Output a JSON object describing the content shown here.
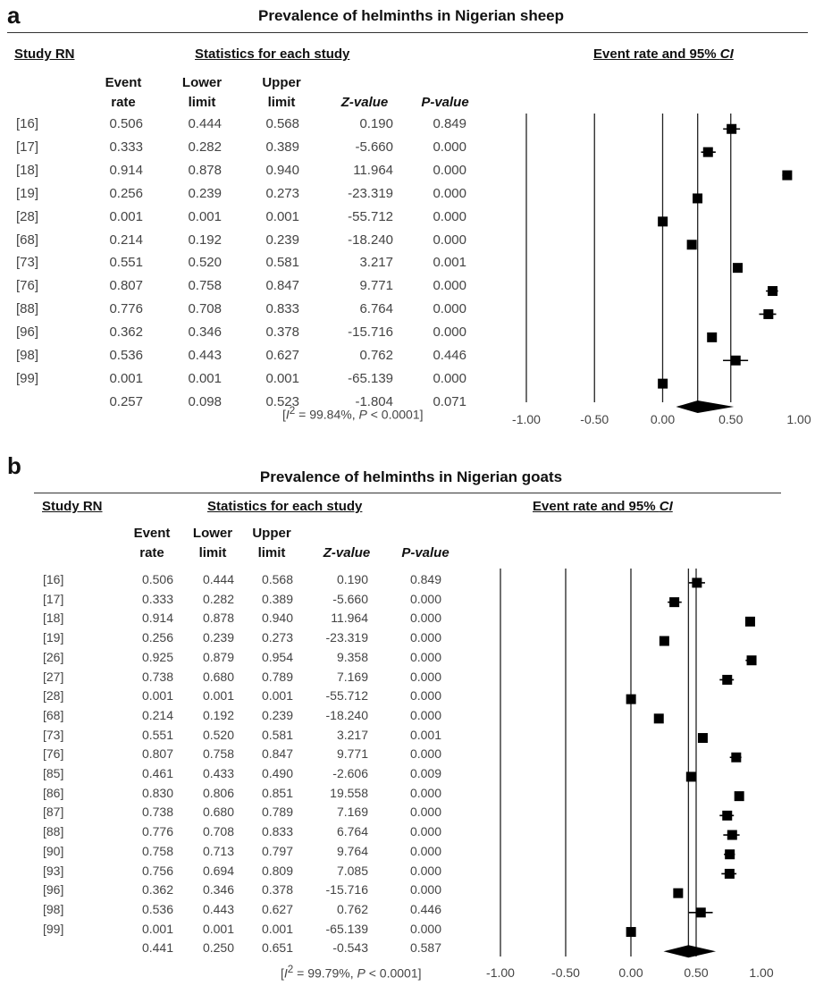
{
  "panels": [
    {
      "label": "a",
      "title": "Prevalence of helminths in Nigerian sheep",
      "header_study": "Study RN",
      "header_stats": "Statistics for each study",
      "header_plot_text": "Event rate and 95% ",
      "header_plot_ci": "CI",
      "col_event": [
        "Event",
        "rate"
      ],
      "col_lower": [
        "Lower",
        "limit"
      ],
      "col_upper": [
        "Upper",
        "limit"
      ],
      "col_z": "Z-value",
      "col_p": "P-value",
      "rows": [
        {
          "study": "[16]",
          "rate": "0.506",
          "lower": "0.444",
          "upper": "0.568",
          "z": "0.190",
          "p": "0.849"
        },
        {
          "study": "[17]",
          "rate": "0.333",
          "lower": "0.282",
          "upper": "0.389",
          "z": "-5.660",
          "p": "0.000"
        },
        {
          "study": "[18]",
          "rate": "0.914",
          "lower": "0.878",
          "upper": "0.940",
          "z": "11.964",
          "p": "0.000"
        },
        {
          "study": "[19]",
          "rate": "0.256",
          "lower": "0.239",
          "upper": "0.273",
          "z": "-23.319",
          "p": "0.000"
        },
        {
          "study": "[28]",
          "rate": "0.001",
          "lower": "0.001",
          "upper": "0.001",
          "z": "-55.712",
          "p": "0.000"
        },
        {
          "study": "[68]",
          "rate": "0.214",
          "lower": "0.192",
          "upper": "0.239",
          "z": "-18.240",
          "p": "0.000"
        },
        {
          "study": "[73]",
          "rate": "0.551",
          "lower": "0.520",
          "upper": "0.581",
          "z": "3.217",
          "p": "0.001"
        },
        {
          "study": "[76]",
          "rate": "0.807",
          "lower": "0.758",
          "upper": "0.847",
          "z": "9.771",
          "p": "0.000"
        },
        {
          "study": "[88]",
          "rate": "0.776",
          "lower": "0.708",
          "upper": "0.833",
          "z": "6.764",
          "p": "0.000"
        },
        {
          "study": "[96]",
          "rate": "0.362",
          "lower": "0.346",
          "upper": "0.378",
          "z": "-15.716",
          "p": "0.000"
        },
        {
          "study": "[98]",
          "rate": "0.536",
          "lower": "0.443",
          "upper": "0.627",
          "z": "0.762",
          "p": "0.446"
        },
        {
          "study": "[99]",
          "rate": "0.001",
          "lower": "0.001",
          "upper": "0.001",
          "z": "-65.139",
          "p": "0.000"
        }
      ],
      "summary": {
        "rate": "0.257",
        "lower": "0.098",
        "upper": "0.523",
        "z": "-1.804",
        "p": "0.071"
      },
      "heterogeneity": {
        "pre": "[",
        "i": "I",
        "sup": "2",
        "mid": " = 99.84%, ",
        "p": "P",
        "post": " < 0.0001]"
      }
    },
    {
      "label": "b",
      "title": "Prevalence of helminths in Nigerian goats",
      "header_study": "Study RN",
      "header_stats": "Statistics for each study",
      "header_plot_text": "Event rate and 95% ",
      "header_plot_ci": "CI",
      "col_event": [
        "Event",
        "rate"
      ],
      "col_lower": [
        "Lower",
        "limit"
      ],
      "col_upper": [
        "Upper",
        "limit"
      ],
      "col_z": "Z-value",
      "col_p": "P-value",
      "rows": [
        {
          "study": "[16]",
          "rate": "0.506",
          "lower": "0.444",
          "upper": "0.568",
          "z": "0.190",
          "p": "0.849"
        },
        {
          "study": "[17]",
          "rate": "0.333",
          "lower": "0.282",
          "upper": "0.389",
          "z": "-5.660",
          "p": "0.000"
        },
        {
          "study": "[18]",
          "rate": "0.914",
          "lower": "0.878",
          "upper": "0.940",
          "z": "11.964",
          "p": "0.000"
        },
        {
          "study": "[19]",
          "rate": "0.256",
          "lower": "0.239",
          "upper": "0.273",
          "z": "-23.319",
          "p": "0.000"
        },
        {
          "study": "[26]",
          "rate": "0.925",
          "lower": "0.879",
          "upper": "0.954",
          "z": "9.358",
          "p": "0.000"
        },
        {
          "study": "[27]",
          "rate": "0.738",
          "lower": "0.680",
          "upper": "0.789",
          "z": "7.169",
          "p": "0.000"
        },
        {
          "study": "[28]",
          "rate": "0.001",
          "lower": "0.001",
          "upper": "0.001",
          "z": "-55.712",
          "p": "0.000"
        },
        {
          "study": "[68]",
          "rate": "0.214",
          "lower": "0.192",
          "upper": "0.239",
          "z": "-18.240",
          "p": "0.000"
        },
        {
          "study": "[73]",
          "rate": "0.551",
          "lower": "0.520",
          "upper": "0.581",
          "z": "3.217",
          "p": "0.001"
        },
        {
          "study": "[76]",
          "rate": "0.807",
          "lower": "0.758",
          "upper": "0.847",
          "z": "9.771",
          "p": "0.000"
        },
        {
          "study": "[85]",
          "rate": "0.461",
          "lower": "0.433",
          "upper": "0.490",
          "z": "-2.606",
          "p": "0.009"
        },
        {
          "study": "[86]",
          "rate": "0.830",
          "lower": "0.806",
          "upper": "0.851",
          "z": "19.558",
          "p": "0.000"
        },
        {
          "study": "[87]",
          "rate": "0.738",
          "lower": "0.680",
          "upper": "0.789",
          "z": "7.169",
          "p": "0.000"
        },
        {
          "study": "[88]",
          "rate": "0.776",
          "lower": "0.708",
          "upper": "0.833",
          "z": "6.764",
          "p": "0.000"
        },
        {
          "study": "[90]",
          "rate": "0.758",
          "lower": "0.713",
          "upper": "0.797",
          "z": "9.764",
          "p": "0.000"
        },
        {
          "study": "[93]",
          "rate": "0.756",
          "lower": "0.694",
          "upper": "0.809",
          "z": "7.085",
          "p": "0.000"
        },
        {
          "study": "[96]",
          "rate": "0.362",
          "lower": "0.346",
          "upper": "0.378",
          "z": "-15.716",
          "p": "0.000"
        },
        {
          "study": "[98]",
          "rate": "0.536",
          "lower": "0.443",
          "upper": "0.627",
          "z": "0.762",
          "p": "0.446"
        },
        {
          "study": "[99]",
          "rate": "0.001",
          "lower": "0.001",
          "upper": "0.001",
          "z": "-65.139",
          "p": "0.000"
        }
      ],
      "summary": {
        "rate": "0.441",
        "lower": "0.250",
        "upper": "0.651",
        "z": "-0.543",
        "p": "0.587"
      },
      "heterogeneity": {
        "pre": "[",
        "i": "I",
        "sup": "2",
        "mid": " = 99.79%, ",
        "p": "P",
        "post": " < 0.0001]"
      }
    }
  ],
  "chart_data": [
    {
      "type": "forest",
      "title": "Prevalence of helminths in Nigerian sheep",
      "x_ticks": [
        "-1.00",
        "-0.50",
        "0.00",
        "0.50",
        "1.00"
      ],
      "xlim": [
        -1,
        1
      ],
      "categories": [
        "[16]",
        "[17]",
        "[18]",
        "[19]",
        "[28]",
        "[68]",
        "[73]",
        "[76]",
        "[88]",
        "[96]",
        "[98]",
        "[99]"
      ],
      "values": [
        0.506,
        0.333,
        0.914,
        0.256,
        0.001,
        0.214,
        0.551,
        0.807,
        0.776,
        0.362,
        0.536,
        0.001
      ],
      "lower": [
        0.444,
        0.282,
        0.878,
        0.239,
        0.001,
        0.192,
        0.52,
        0.758,
        0.708,
        0.346,
        0.443,
        0.001
      ],
      "upper": [
        0.568,
        0.389,
        0.94,
        0.273,
        0.001,
        0.239,
        0.581,
        0.847,
        0.833,
        0.378,
        0.627,
        0.001
      ],
      "summary": {
        "value": 0.257,
        "lower": 0.098,
        "upper": 0.523
      }
    },
    {
      "type": "forest",
      "title": "Prevalence of helminths in Nigerian goats",
      "x_ticks": [
        "-1.00",
        "-0.50",
        "0.00",
        "0.50",
        "1.00"
      ],
      "xlim": [
        -1,
        1
      ],
      "categories": [
        "[16]",
        "[17]",
        "[18]",
        "[19]",
        "[26]",
        "[27]",
        "[28]",
        "[68]",
        "[73]",
        "[76]",
        "[85]",
        "[86]",
        "[87]",
        "[88]",
        "[90]",
        "[93]",
        "[96]",
        "[98]",
        "[99]"
      ],
      "values": [
        0.506,
        0.333,
        0.914,
        0.256,
        0.925,
        0.738,
        0.001,
        0.214,
        0.551,
        0.807,
        0.461,
        0.83,
        0.738,
        0.776,
        0.758,
        0.756,
        0.362,
        0.536,
        0.001
      ],
      "lower": [
        0.444,
        0.282,
        0.878,
        0.239,
        0.879,
        0.68,
        0.001,
        0.192,
        0.52,
        0.758,
        0.433,
        0.806,
        0.68,
        0.708,
        0.713,
        0.694,
        0.346,
        0.443,
        0.001
      ],
      "upper": [
        0.568,
        0.389,
        0.94,
        0.273,
        0.954,
        0.789,
        0.001,
        0.239,
        0.581,
        0.847,
        0.49,
        0.851,
        0.789,
        0.833,
        0.797,
        0.809,
        0.378,
        0.627,
        0.001
      ],
      "summary": {
        "value": 0.441,
        "lower": 0.25,
        "upper": 0.651
      }
    }
  ]
}
